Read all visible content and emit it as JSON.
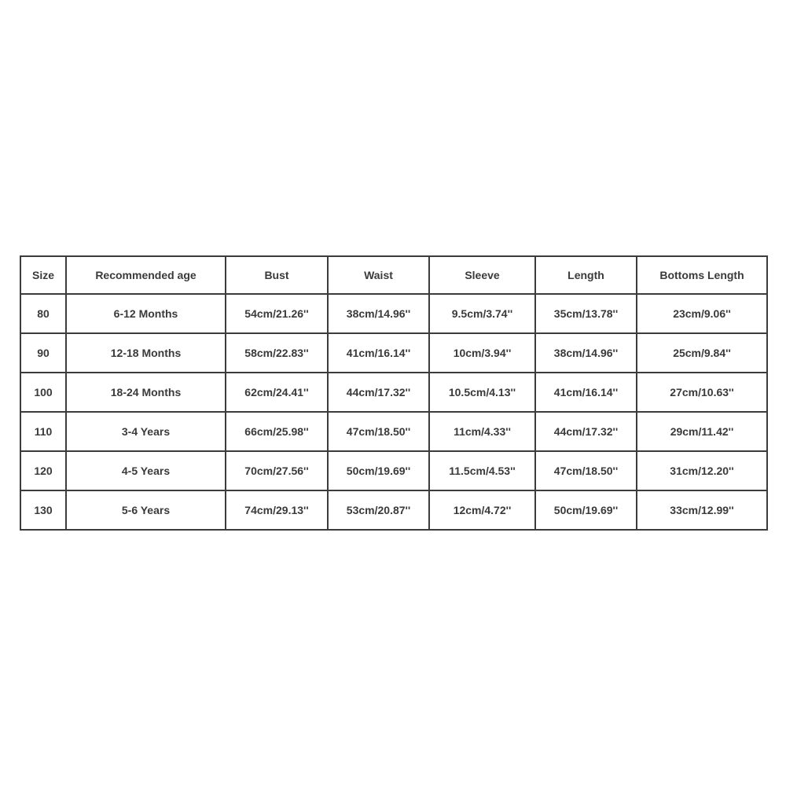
{
  "size_chart": {
    "headers": [
      "Size",
      "Recommended age",
      "Bust",
      "Waist",
      "Sleeve",
      "Length",
      "Bottoms Length"
    ],
    "rows": [
      [
        "80",
        "6-12 Months",
        "54cm/21.26''",
        "38cm/14.96''",
        "9.5cm/3.74''",
        "35cm/13.78''",
        "23cm/9.06''"
      ],
      [
        "90",
        "12-18 Months",
        "58cm/22.83''",
        "41cm/16.14''",
        "10cm/3.94''",
        "38cm/14.96''",
        "25cm/9.84''"
      ],
      [
        "100",
        "18-24 Months",
        "62cm/24.41''",
        "44cm/17.32''",
        "10.5cm/4.13''",
        "41cm/16.14''",
        "27cm/10.63''"
      ],
      [
        "110",
        "3-4 Years",
        "66cm/25.98''",
        "47cm/18.50''",
        "11cm/4.33''",
        "44cm/17.32''",
        "29cm/11.42''"
      ],
      [
        "120",
        "4-5 Years",
        "70cm/27.56''",
        "50cm/19.69''",
        "11.5cm/4.53''",
        "47cm/18.50''",
        "31cm/12.20''"
      ],
      [
        "130",
        "5-6 Years",
        "74cm/29.13''",
        "53cm/20.87''",
        "12cm/4.72''",
        "50cm/19.69''",
        "33cm/12.99''"
      ]
    ]
  }
}
